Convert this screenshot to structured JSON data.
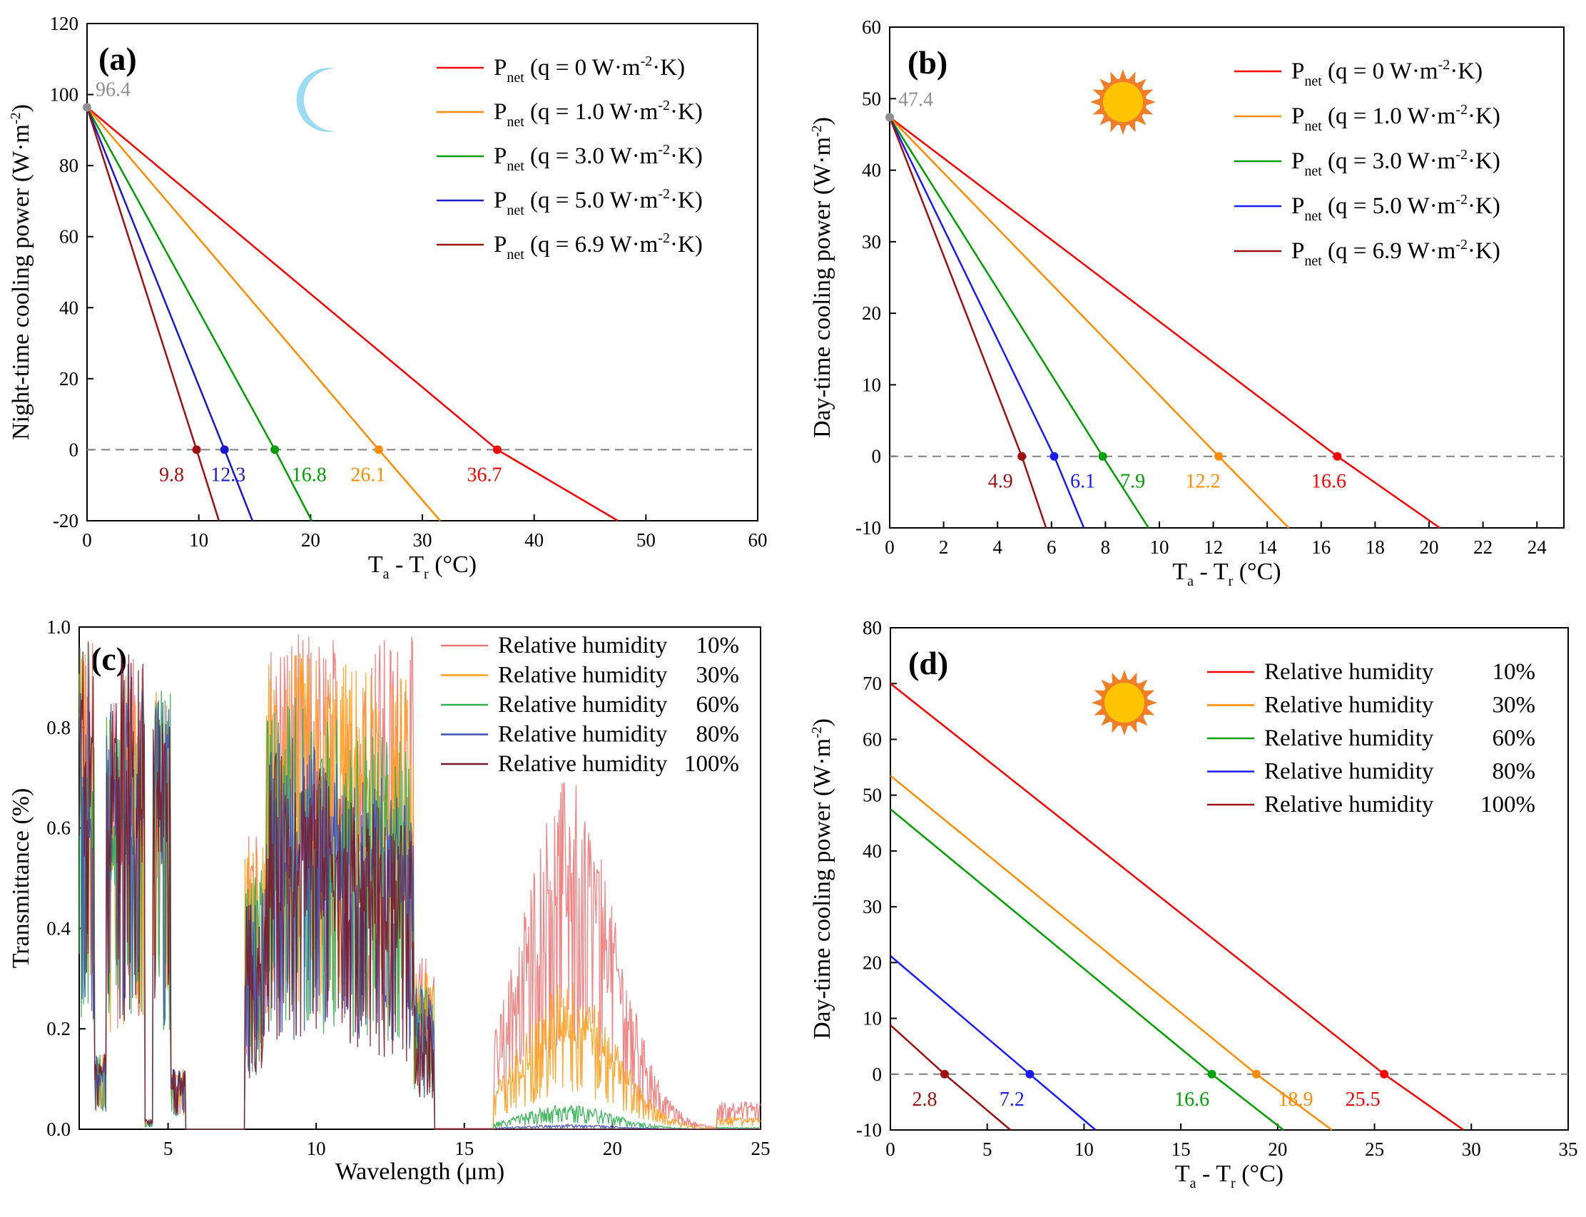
{
  "chart_data": [
    {
      "panel": "(a)",
      "type": "line",
      "xlabel": "Ta - Tr (°C)",
      "ylabel": "Night-time cooling power (W·m-2)",
      "xlim": [
        0,
        60
      ],
      "ylim": [
        -20,
        120
      ],
      "xticks": [
        0,
        10,
        20,
        30,
        40,
        50,
        60
      ],
      "yticks": [
        -20,
        0,
        20,
        40,
        60,
        80,
        100,
        120
      ],
      "start_label": "96.4",
      "icon": "moon",
      "series": [
        {
          "name": "Pnet (q = 0 W·m-2·K)",
          "q": "0",
          "color": "#ff0000",
          "x": [
            0,
            36.7,
            47.5
          ],
          "y": [
            96.4,
            0,
            -20
          ],
          "zero": 36.7,
          "zero_label": "36.7"
        },
        {
          "name": "Pnet (q = 1.0 W·m-2·K)",
          "q": "1.0",
          "color": "#ff8c00",
          "x": [
            0,
            26.1,
            31.6
          ],
          "y": [
            96.4,
            0,
            -20
          ],
          "zero": 26.1,
          "zero_label": "26.1"
        },
        {
          "name": "Pnet (q = 3.0 W·m-2·K)",
          "q": "3.0",
          "color": "#00a000",
          "x": [
            0,
            16.8,
            20.1
          ],
          "y": [
            96.4,
            0,
            -20
          ],
          "zero": 16.8,
          "zero_label": "16.8"
        },
        {
          "name": "Pnet (q = 5.0 W·m-2·K)",
          "q": "5.0",
          "color": "#1a1acc",
          "x": [
            0,
            12.3,
            14.8
          ],
          "y": [
            96.4,
            0,
            -20
          ],
          "zero": 12.3,
          "zero_label": "12.3"
        },
        {
          "name": "Pnet (q = 6.9 W·m-2·K)",
          "q": "6.9",
          "color": "#a01010",
          "x": [
            0,
            9.8,
            11.8
          ],
          "y": [
            96.4,
            0,
            -20
          ],
          "zero": 9.8,
          "zero_label": "9.8"
        }
      ]
    },
    {
      "panel": "(b)",
      "type": "line",
      "xlabel": "Ta - Tr (°C)",
      "ylabel": "Day-time cooling power (W·m-2)",
      "xlim": [
        0,
        25
      ],
      "ylim": [
        -10,
        60
      ],
      "xticks": [
        0,
        2,
        4,
        6,
        8,
        10,
        12,
        14,
        16,
        18,
        20,
        22,
        24
      ],
      "yticks": [
        -10,
        0,
        10,
        20,
        30,
        40,
        50,
        60
      ],
      "start_label": "47.4",
      "icon": "sun",
      "series": [
        {
          "name": "Pnet (q = 0 W·m-2·K)",
          "q": "0",
          "color": "#ff0000",
          "x": [
            0,
            16.6,
            20.4
          ],
          "y": [
            47.4,
            0,
            -10
          ],
          "zero": 16.6,
          "zero_label": "16.6"
        },
        {
          "name": "Pnet (q = 1.0 W·m-2·K)",
          "q": "1.0",
          "color": "#ff8c00",
          "x": [
            0,
            12.2,
            14.8
          ],
          "y": [
            47.4,
            0,
            -10
          ],
          "zero": 12.2,
          "zero_label": "12.2"
        },
        {
          "name": "Pnet (q = 3.0 W·m-2·K)",
          "q": "3.0",
          "color": "#00a000",
          "x": [
            0,
            7.9,
            9.6
          ],
          "y": [
            47.4,
            0,
            -10
          ],
          "zero": 7.9,
          "zero_label": "7.9"
        },
        {
          "name": "Pnet (q = 5.0 W·m-2·K)",
          "q": "5.0",
          "color": "#1a1aff",
          "x": [
            0,
            6.1,
            7.2
          ],
          "y": [
            47.4,
            0,
            -10
          ],
          "zero": 6.1,
          "zero_label": "6.1"
        },
        {
          "name": "Pnet (q = 6.9 W·m-2·K)",
          "q": "6.9",
          "color": "#a01010",
          "x": [
            0,
            4.9,
            5.8
          ],
          "y": [
            47.4,
            0,
            -10
          ],
          "zero": 4.9,
          "zero_label": "4.9"
        }
      ]
    },
    {
      "panel": "(c)",
      "type": "line",
      "xlabel": "Wavelength (μm)",
      "ylabel": "Transmittance (%)",
      "xlim": [
        2,
        25
      ],
      "ylim": [
        0,
        1.0
      ],
      "xticks": [
        5,
        10,
        15,
        20,
        25
      ],
      "yticks": [
        0.0,
        0.2,
        0.4,
        0.6,
        0.8,
        1.0
      ],
      "series": [
        {
          "name": "Relative humidity 10%",
          "label": "Relative humidity",
          "pct": "10%",
          "color": "#f07878",
          "peak_window": 0.99,
          "peak_far": 0.7
        },
        {
          "name": "Relative humidity 30%",
          "label": "Relative humidity",
          "pct": "30%",
          "color": "#ffa020",
          "peak_window": 0.95,
          "peak_far": 0.3
        },
        {
          "name": "Relative humidity 60%",
          "label": "Relative humidity",
          "pct": "60%",
          "color": "#30b050",
          "peak_window": 0.86,
          "peak_far": 0.05
        },
        {
          "name": "Relative humidity 80%",
          "label": "Relative humidity",
          "pct": "80%",
          "color": "#4050b8",
          "peak_window": 0.8,
          "peak_far": 0.01
        },
        {
          "name": "Relative humidity 100%",
          "label": "Relative humidity",
          "pct": "100%",
          "color": "#7a1a2a",
          "peak_window": 0.75,
          "peak_far": 0.0
        }
      ]
    },
    {
      "panel": "(d)",
      "type": "line",
      "xlabel": "Ta - Tr (°C)",
      "ylabel": "Day-time cooling power (W·m-2)",
      "xlim": [
        0,
        35
      ],
      "ylim": [
        -10,
        80
      ],
      "xticks": [
        0,
        5,
        10,
        15,
        20,
        25,
        30,
        35
      ],
      "yticks": [
        -10,
        0,
        10,
        20,
        30,
        40,
        50,
        60,
        70,
        80
      ],
      "icon": "sun",
      "series": [
        {
          "name": "Relative humidity 10%",
          "label": "Relative humidity",
          "pct": "10%",
          "color": "#ff0000",
          "x": [
            0,
            25.5,
            29.6
          ],
          "y": [
            70,
            0,
            -10
          ],
          "zero": 25.5,
          "zero_label": "25.5"
        },
        {
          "name": "Relative humidity 30%",
          "label": "Relative humidity",
          "pct": "30%",
          "color": "#ff8c00",
          "x": [
            0,
            18.9,
            22.8
          ],
          "y": [
            53.5,
            0,
            -10
          ],
          "zero": 18.9,
          "zero_label": "18.9"
        },
        {
          "name": "Relative humidity 60%",
          "label": "Relative humidity",
          "pct": "60%",
          "color": "#00a000",
          "x": [
            0,
            16.6,
            20.3
          ],
          "y": [
            47.5,
            0,
            -10
          ],
          "zero": 16.6,
          "zero_label": "16.6"
        },
        {
          "name": "Relative humidity 80%",
          "label": "Relative humidity",
          "pct": "80%",
          "color": "#1a1aff",
          "x": [
            0,
            7.2,
            10.6
          ],
          "y": [
            21.2,
            0,
            -10
          ],
          "zero": 7.2,
          "zero_label": "7.2"
        },
        {
          "name": "Relative humidity 100%",
          "label": "Relative humidity",
          "pct": "100%",
          "color": "#a01010",
          "x": [
            0,
            2.8,
            6.2
          ],
          "y": [
            8.8,
            0,
            -10
          ],
          "zero": 2.8,
          "zero_label": "2.8"
        }
      ]
    }
  ],
  "text": {
    "x_T": "T",
    "x_sub_a": "a",
    "x_dash": " - T",
    "x_sub_r": "r",
    "x_unit": " (°C)",
    "legend_P": "P",
    "legend_net": "net",
    "legend_open": "(q = ",
    "legend_unit": " W·m",
    "legend_exp": "-2",
    "legend_K": "·K)",
    "ylab_a_main": "Night-time cooling power (W·m",
    "ylab_bd_main": "Day-time cooling power (W·m",
    "ylab_exp": "-2",
    "ylab_close": ")"
  }
}
